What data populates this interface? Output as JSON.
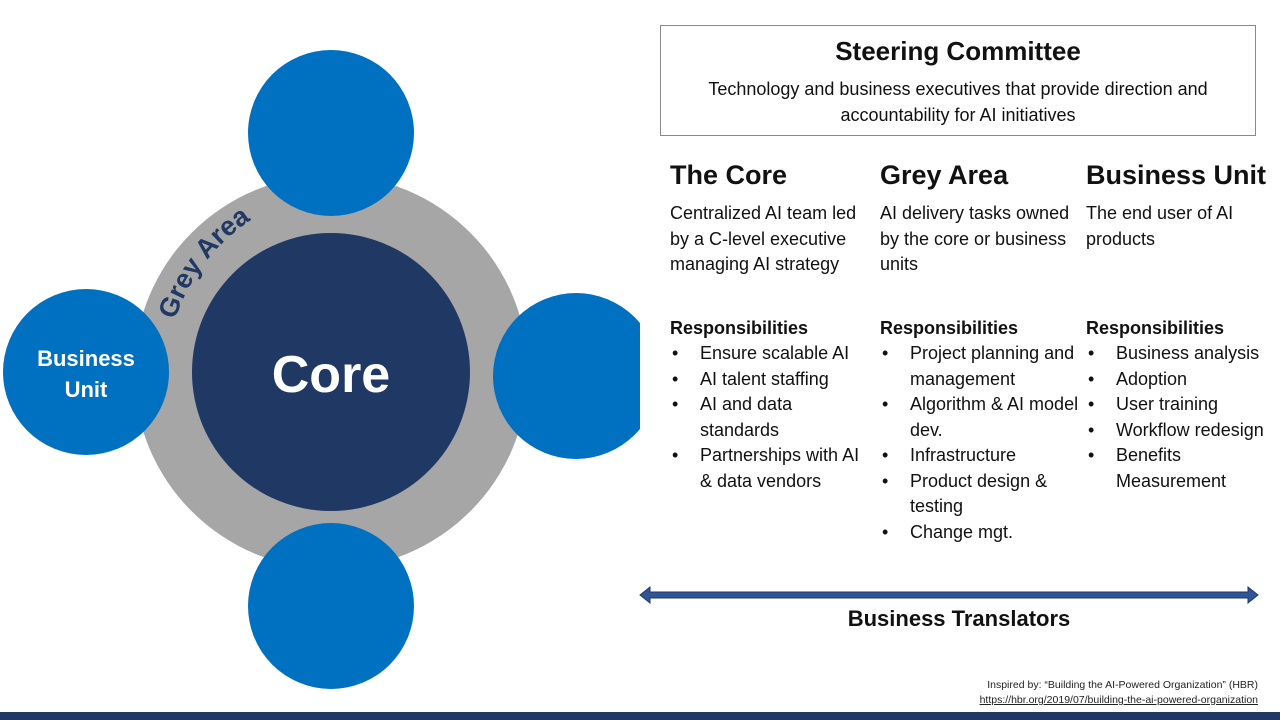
{
  "diagram": {
    "core_label": "Core",
    "grey_label": "Grey Area",
    "business_unit_label_line1": "Business",
    "business_unit_label_line2": "Unit",
    "colors": {
      "core": "#203864",
      "grey_ring": "#a6a6a6",
      "satellite": "#0070c0",
      "text_light": "#ffffff",
      "grey_text": "#203864"
    }
  },
  "steering": {
    "title": "Steering Committee",
    "description": "Technology and business executives that provide direction and accountability for AI initiatives"
  },
  "columns": [
    {
      "heading": "The Core",
      "description": "Centralized AI team led by a C-level executive managing AI strategy",
      "responsibilities_title": "Responsibilities",
      "responsibilities": [
        "Ensure scalable AI",
        "AI talent staffing",
        "AI and data standards",
        "Partnerships with AI & data vendors"
      ]
    },
    {
      "heading": "Grey Area",
      "description": "AI delivery tasks owned by the core or business units",
      "responsibilities_title": "Responsibilities",
      "responsibilities": [
        "Project planning and management",
        "Algorithm & AI model dev.",
        "Infrastructure",
        "Product design & testing",
        "Change mgt."
      ]
    },
    {
      "heading": "Business Unit",
      "description": "The end user of AI products",
      "responsibilities_title": "Responsibilities",
      "responsibilities": [
        "Business analysis",
        "Adoption",
        "User training",
        "Workflow redesign",
        "Benefits Measurement"
      ]
    }
  ],
  "translators": {
    "label": "Business Translators",
    "arrow_color": "#2f5597"
  },
  "credit": {
    "line1": "Inspired by: “Building the AI-Powered Organization” (HBR)",
    "url": "https://hbr.org/2019/07/building-the-ai-powered-organization"
  },
  "footer_color": "#1f3864"
}
